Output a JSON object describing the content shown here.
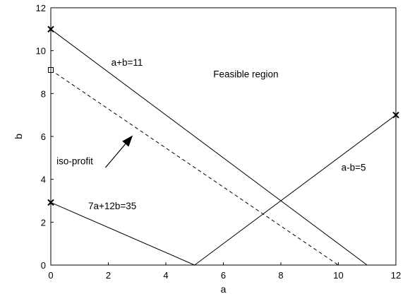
{
  "chart_data": {
    "type": "line",
    "title": "",
    "xlabel": "a",
    "ylabel": "b",
    "xlim": [
      0,
      12
    ],
    "ylim": [
      0,
      12
    ],
    "xticks": [
      0,
      2,
      4,
      6,
      8,
      10,
      12
    ],
    "yticks": [
      0,
      2,
      4,
      6,
      8,
      10,
      12
    ],
    "grid": false,
    "lines": [
      {
        "id": "a-plus-b",
        "style": "solid",
        "points": [
          [
            0,
            11
          ],
          [
            11,
            0
          ]
        ]
      },
      {
        "id": "a-minus-b",
        "style": "solid",
        "points": [
          [
            5,
            0
          ],
          [
            12,
            7
          ]
        ]
      },
      {
        "id": "constraint-7a-12b",
        "style": "solid",
        "points": [
          [
            0,
            2.92
          ],
          [
            5,
            0
          ]
        ]
      },
      {
        "id": "iso-profit",
        "style": "dashed",
        "points": [
          [
            0,
            9.1
          ],
          [
            10,
            0
          ]
        ]
      }
    ],
    "markers": [
      {
        "shape": "x",
        "x": 0,
        "y": 11
      },
      {
        "shape": "x",
        "x": 12,
        "y": 7
      },
      {
        "shape": "x",
        "x": 0,
        "y": 2.92
      },
      {
        "shape": "square",
        "x": 0,
        "y": 9.1
      }
    ],
    "annotations": [
      {
        "text": "a+b=11",
        "x": 2.1,
        "y": 9.3
      },
      {
        "text": "Feasible region",
        "x": 5.65,
        "y": 8.75
      },
      {
        "text": "a-b=5",
        "x": 10.1,
        "y": 4.4
      },
      {
        "text": "7a+12b=35",
        "x": 1.3,
        "y": 2.6
      },
      {
        "text": "iso-profit",
        "x": 0.2,
        "y": 4.7
      }
    ],
    "arrow": {
      "from": [
        1.9,
        4.55
      ],
      "to": [
        2.85,
        6.05
      ]
    }
  }
}
